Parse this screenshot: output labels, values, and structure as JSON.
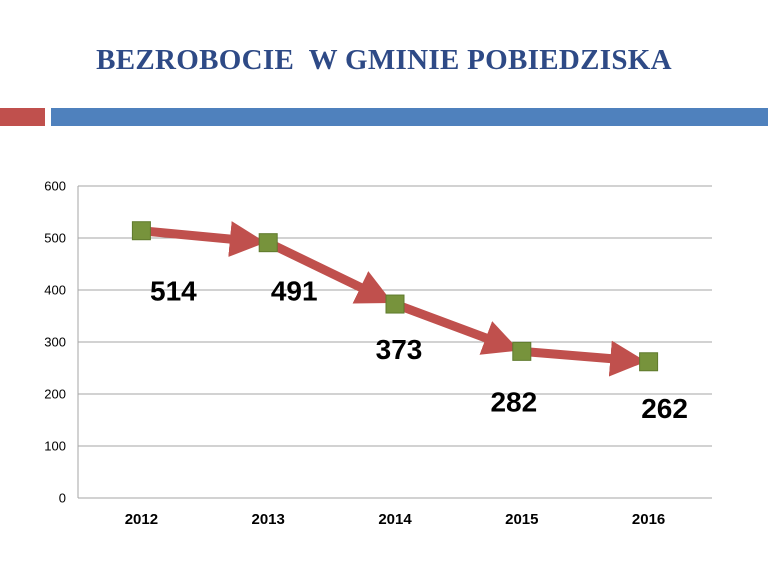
{
  "slide": {
    "title": "BEZROBOCIE  W GMINIE POBIEDZISKA",
    "accent_red": "#c0504d",
    "accent_blue": "#4f81bd"
  },
  "chart_data": {
    "type": "line",
    "categories": [
      "2012",
      "2013",
      "2014",
      "2015",
      "2016"
    ],
    "series": [
      {
        "values": [
          514,
          491,
          373,
          282,
          262
        ],
        "line_color": "#c0504d",
        "marker_color": "#77933c",
        "marker": "square"
      }
    ],
    "data_labels": [
      "514",
      "491",
      "373",
      "282",
      "262"
    ],
    "yticks": [
      "0",
      "100",
      "200",
      "300",
      "400",
      "500",
      "600"
    ],
    "ylim": [
      0,
      600
    ],
    "grid": true,
    "legend": "none",
    "title": "",
    "xlabel": "",
    "ylabel": ""
  }
}
